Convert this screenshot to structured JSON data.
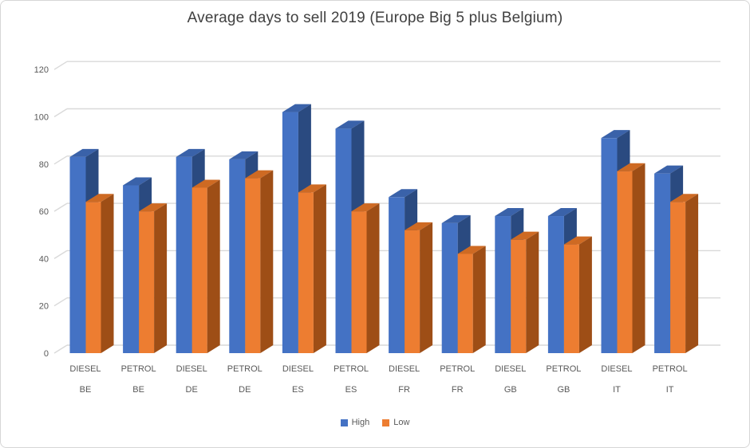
{
  "window": {
    "title": "Average days to sell 2019 (Europe Big 5 plus Belgium)"
  },
  "chart_data": {
    "type": "bar",
    "subtype": "3d-clustered-column",
    "title": "Average days to sell 2019 (Europe Big 5 plus Belgium)",
    "categories": [
      {
        "fuel": "DIESEL",
        "country": "BE"
      },
      {
        "fuel": "PETROL",
        "country": "BE"
      },
      {
        "fuel": "DIESEL",
        "country": "DE"
      },
      {
        "fuel": "PETROL",
        "country": "DE"
      },
      {
        "fuel": "DIESEL",
        "country": "ES"
      },
      {
        "fuel": "PETROL",
        "country": "ES"
      },
      {
        "fuel": "DIESEL",
        "country": "FR"
      },
      {
        "fuel": "PETROL",
        "country": "FR"
      },
      {
        "fuel": "DIESEL",
        "country": "GB"
      },
      {
        "fuel": "PETROL",
        "country": "GB"
      },
      {
        "fuel": "DIESEL",
        "country": "IT"
      },
      {
        "fuel": "PETROL",
        "country": "IT"
      }
    ],
    "series": [
      {
        "name": "High",
        "color": "#4472C4",
        "color_top": "#3A62A9",
        "color_side": "#2A4A80",
        "values": [
          83,
          71,
          83,
          82,
          102,
          95,
          66,
          55,
          58,
          58,
          91,
          76
        ]
      },
      {
        "name": "Low",
        "color": "#ED7D31",
        "color_top": "#CE6A23",
        "color_side": "#9E4E16",
        "values": [
          64,
          60,
          70,
          74,
          68,
          60,
          52,
          42,
          48,
          46,
          77,
          64
        ]
      }
    ],
    "ylim": [
      0,
      120
    ],
    "y_ticks": [
      0,
      20,
      40,
      60,
      80,
      100,
      120
    ],
    "grid": true,
    "legend_position": "bottom",
    "xlabel": "",
    "ylabel": "",
    "axis_text_color": "#595959",
    "gridline_color": "#D9D9D9",
    "title_color": "#404040"
  }
}
